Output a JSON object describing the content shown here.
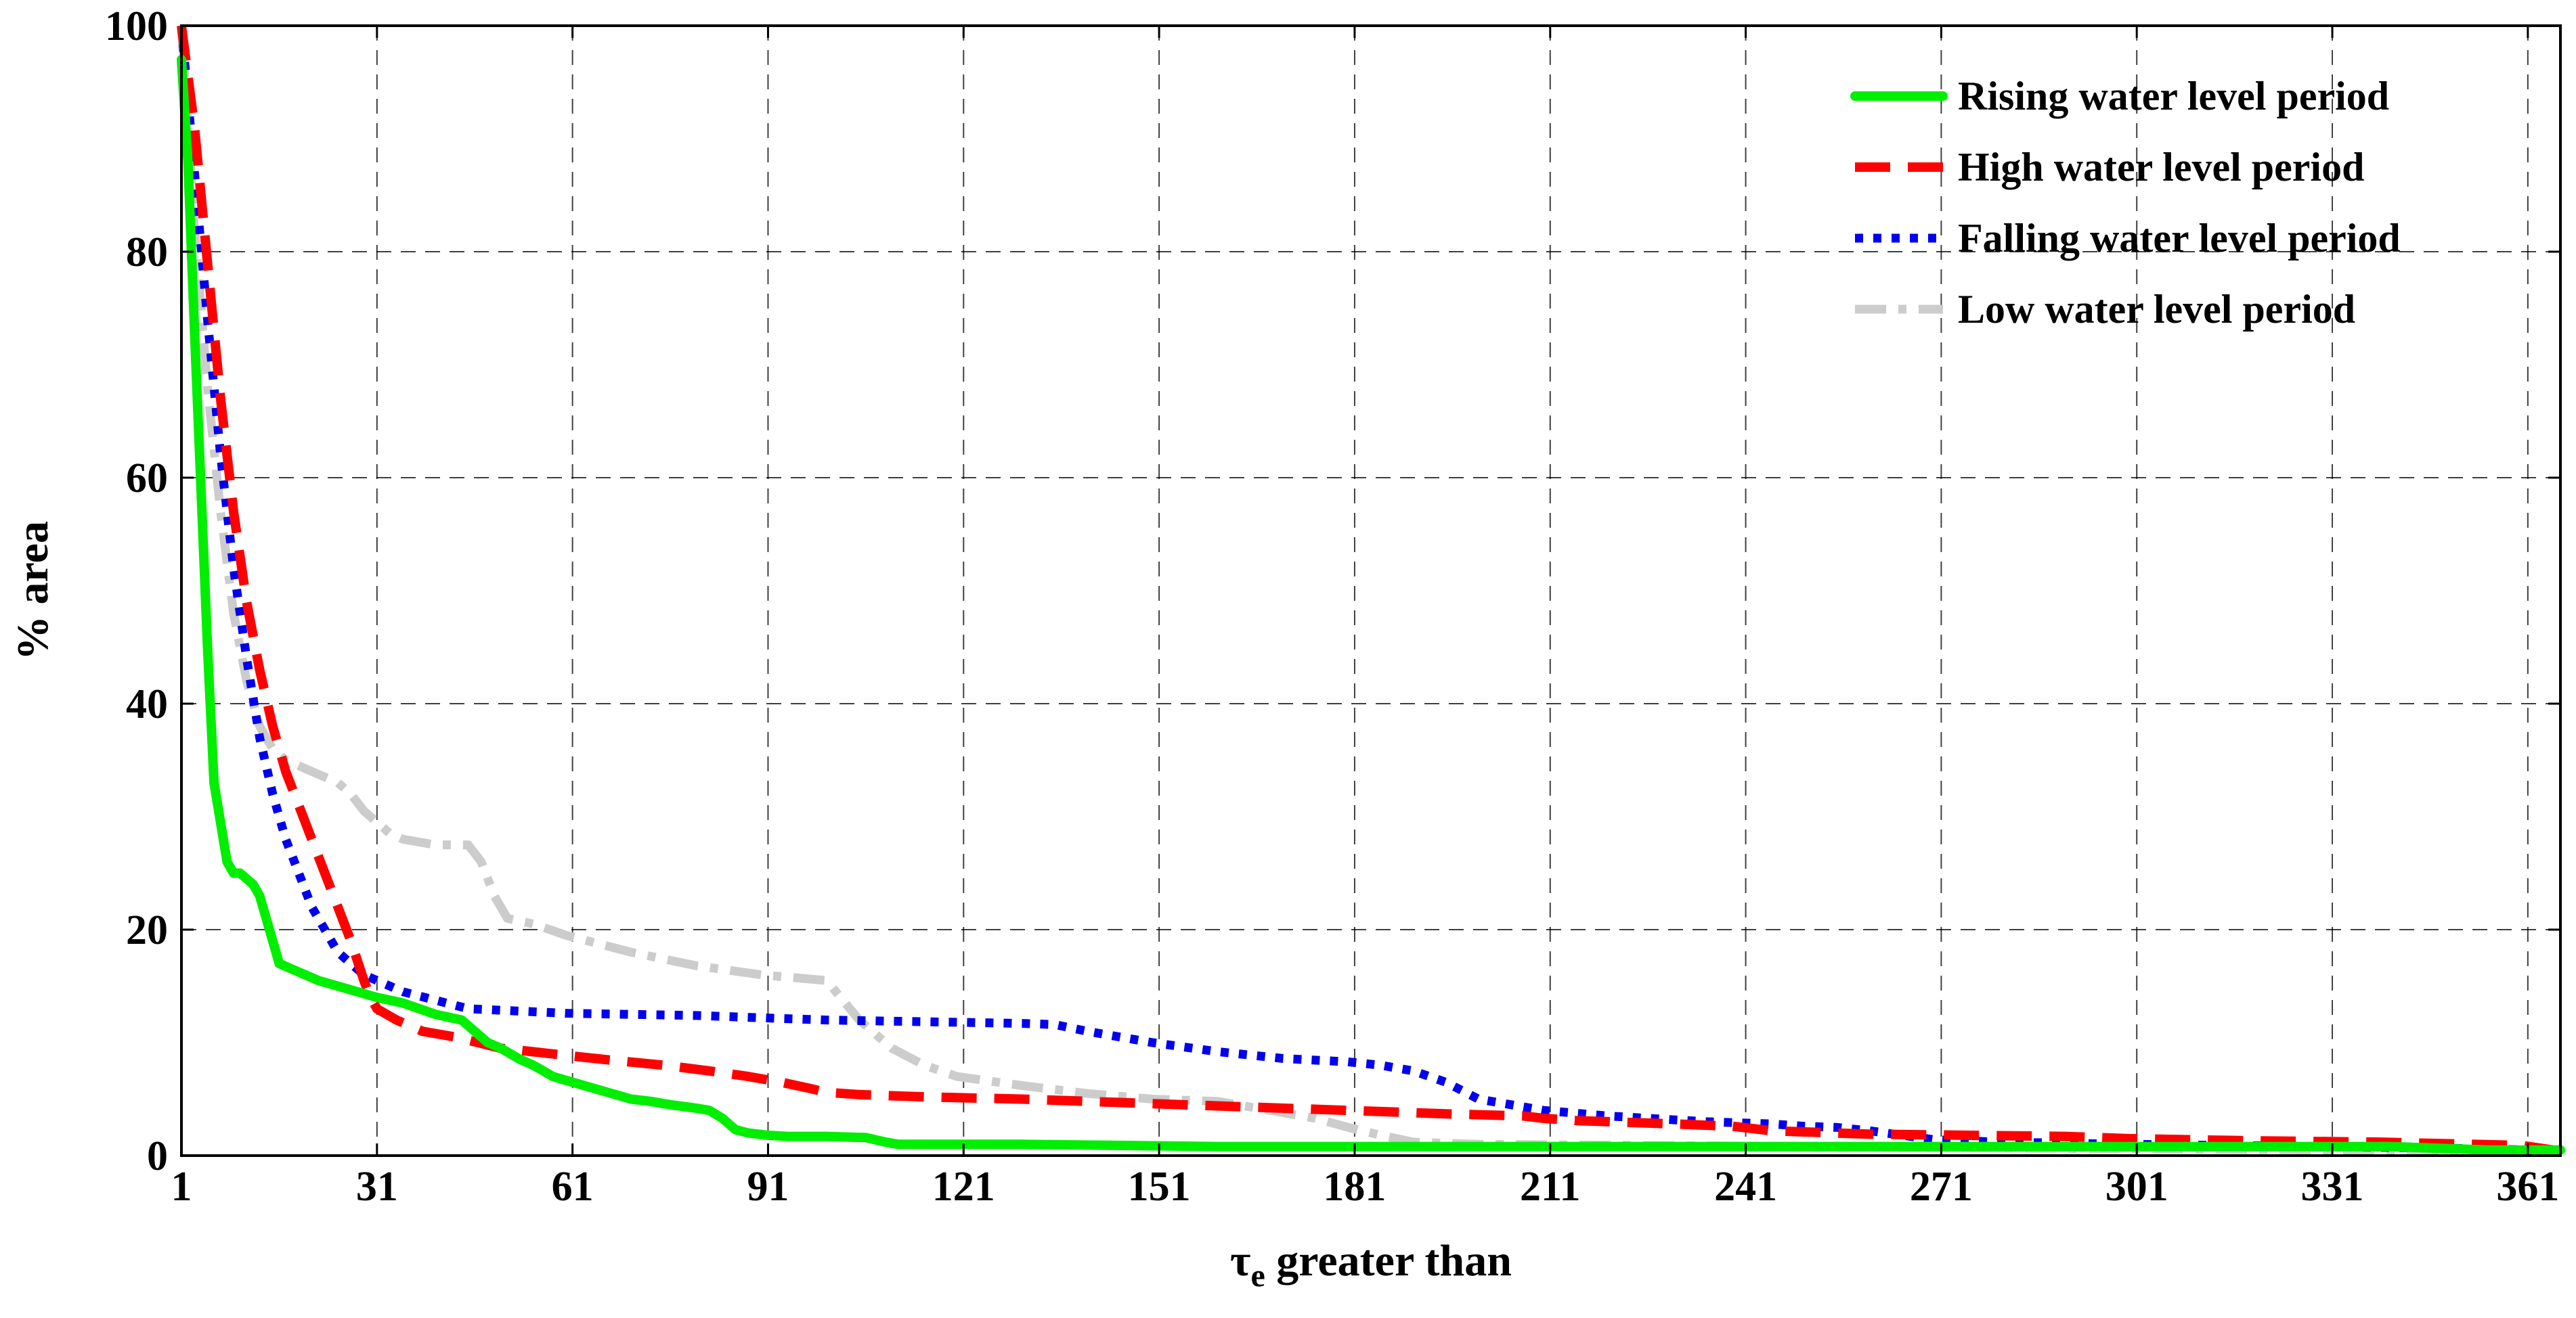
{
  "chart_data": {
    "type": "line",
    "xlabel_main": "τ",
    "xlabel_sub": "e",
    "xlabel_rest": " greater than",
    "ylabel": "% area",
    "xlim": [
      1,
      366
    ],
    "ylim": [
      0,
      100
    ],
    "x_ticks": [
      "1",
      "31",
      "61",
      "91",
      "121",
      "151",
      "181",
      "211",
      "241",
      "271",
      "301",
      "331",
      "361"
    ],
    "y_ticks": [
      "0",
      "20",
      "40",
      "60",
      "80",
      "100"
    ],
    "grid": true,
    "legend_position": "top-right",
    "series": [
      {
        "name": "Rising water level period",
        "color": "#00ee00",
        "style": "solid",
        "x": [
          1,
          2,
          3,
          4,
          5,
          6,
          8,
          9,
          10,
          12,
          13,
          14,
          15,
          16,
          18,
          20,
          22,
          25,
          28,
          31,
          35,
          40,
          44,
          46,
          48,
          50,
          53,
          55,
          58,
          61,
          64,
          67,
          70,
          73,
          76,
          80,
          82,
          84,
          86,
          88,
          91,
          94,
          100,
          106,
          109,
          111,
          130,
          160,
          200,
          250,
          300,
          340,
          355,
          366
        ],
        "y": [
          97,
          88,
          73,
          59,
          45,
          33,
          26,
          25,
          25,
          24,
          23,
          21,
          19,
          17,
          16.5,
          16,
          15.5,
          15,
          14.5,
          14,
          13.5,
          12.5,
          12,
          11,
          10,
          9.5,
          8.5,
          8,
          7,
          6.5,
          6,
          5.5,
          5,
          4.8,
          4.5,
          4.2,
          4,
          3.3,
          2.3,
          2,
          1.8,
          1.7,
          1.7,
          1.6,
          1.2,
          1,
          1,
          0.8,
          0.8,
          0.8,
          0.8,
          0.8,
          0.5,
          0.5
        ]
      },
      {
        "name": "High water level period",
        "color": "#ff0000",
        "style": "dashed",
        "x": [
          1,
          3,
          5,
          7,
          9,
          11,
          13,
          15,
          17,
          19,
          21,
          23,
          25,
          27,
          29,
          30,
          31,
          34,
          38,
          43,
          50,
          58,
          66,
          75,
          82,
          88,
          93,
          97,
          100,
          105,
          115,
          130,
          140,
          150,
          165,
          180,
          195,
          207,
          210,
          215,
          230,
          239,
          242,
          245,
          260,
          290,
          300,
          320,
          338,
          345,
          360,
          366
        ],
        "y": [
          100,
          91,
          79,
          67,
          57,
          49,
          43,
          38,
          34,
          31,
          28,
          25,
          22,
          19,
          15.5,
          14,
          13,
          12,
          11,
          10.5,
          9.5,
          9,
          8.5,
          8,
          7.5,
          7,
          6.5,
          6,
          5.6,
          5.4,
          5.2,
          5,
          4.8,
          4.6,
          4.3,
          4,
          3.7,
          3.5,
          3.3,
          3.1,
          2.8,
          2.6,
          2.4,
          2.2,
          1.9,
          1.7,
          1.5,
          1.3,
          1.2,
          1.1,
          0.9,
          0.4
        ]
      },
      {
        "name": "Falling water level period",
        "color": "#0000ee",
        "style": "dotted",
        "x": [
          1,
          3,
          5,
          7,
          9,
          11,
          13,
          15,
          17,
          19,
          21,
          23,
          25,
          27,
          29,
          31,
          35,
          45,
          60,
          80,
          90,
          100,
          110,
          120,
          130,
          135,
          140,
          145,
          150,
          160,
          170,
          180,
          185,
          190,
          195,
          200,
          205,
          210,
          220,
          235,
          245,
          250,
          255,
          260,
          265,
          270,
          280,
          300,
          330,
          355,
          366
        ],
        "y": [
          100,
          87,
          74,
          62,
          52,
          44,
          37,
          32,
          28,
          25,
          22,
          20,
          18,
          17,
          16,
          15.5,
          14.5,
          13,
          12.6,
          12.4,
          12.2,
          12,
          11.9,
          11.8,
          11.7,
          11.6,
          11,
          10.5,
          10,
          9.2,
          8.6,
          8.3,
          8,
          7.5,
          6.5,
          5,
          4.5,
          4,
          3.5,
          3,
          2.8,
          2.6,
          2.5,
          2.2,
          1.8,
          1.4,
          1.2,
          1,
          0.8,
          0.6,
          0.4
        ]
      },
      {
        "name": "Low water level period",
        "color": "#cccccc",
        "style": "dashdot",
        "x": [
          1,
          3,
          5,
          7,
          9,
          11,
          13,
          15,
          17,
          19,
          21,
          23,
          25,
          27,
          29,
          31,
          33,
          35,
          40,
          45,
          47,
          49,
          51,
          55,
          60,
          70,
          80,
          90,
          100,
          105,
          110,
          115,
          120,
          130,
          140,
          150,
          160,
          170,
          175,
          180,
          185,
          190,
          200,
          250,
          300,
          366
        ],
        "y": [
          100,
          82,
          68,
          57,
          48,
          42,
          38,
          36,
          35,
          34.5,
          34,
          33.5,
          33,
          32,
          30.5,
          29.5,
          28.5,
          28,
          27.5,
          27.5,
          26,
          23,
          21,
          20.5,
          19.5,
          18,
          16.8,
          16,
          15.5,
          12,
          9.5,
          8,
          7,
          6.2,
          5.5,
          5,
          4.8,
          3.8,
          3.3,
          2.5,
          1.8,
          1.2,
          1,
          0.8,
          0.6,
          0.4
        ]
      }
    ]
  }
}
